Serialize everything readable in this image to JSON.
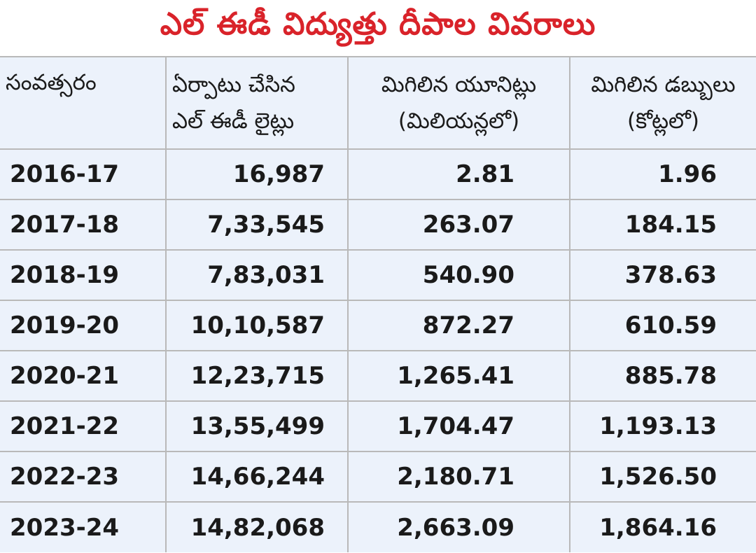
{
  "title": "ఎల్ ఈడీ విద్యుత్తు దీపాల వివరాలు",
  "accent_color": "#d9232a",
  "table_background": "#ecf2fb",
  "headers": {
    "year": "సంవత్సరం",
    "lights_line1": "ఏర్పాటు చేసిన",
    "lights_line2": "ఎల్ ఈడీ లైట్లు",
    "units_line1": "మిగిలిన యూనిట్లు",
    "units_line2": "(మిలియన్లలో)",
    "money_line1": "మిగిలిన డబ్బులు",
    "money_line2": "(కోట్లలో)"
  },
  "rows": [
    {
      "year": "2016-17",
      "lights": "16,987",
      "units": "2.81",
      "money": "1.96"
    },
    {
      "year": "2017-18",
      "lights": "7,33,545",
      "units": "263.07",
      "money": "184.15"
    },
    {
      "year": "2018-19",
      "lights": "7,83,031",
      "units": "540.90",
      "money": "378.63"
    },
    {
      "year": "2019-20",
      "lights": "10,10,587",
      "units": "872.27",
      "money": "610.59"
    },
    {
      "year": "2020-21",
      "lights": "12,23,715",
      "units": "1,265.41",
      "money": "885.78"
    },
    {
      "year": "2021-22",
      "lights": "13,55,499",
      "units": "1,704.47",
      "money": "1,193.13"
    },
    {
      "year": "2022-23",
      "lights": "14,66,244",
      "units": "2,180.71",
      "money": "1,526.50"
    },
    {
      "year": "2023-24",
      "lights": "14,82,068",
      "units": "2,663.09",
      "money": "1,864.16"
    }
  ]
}
